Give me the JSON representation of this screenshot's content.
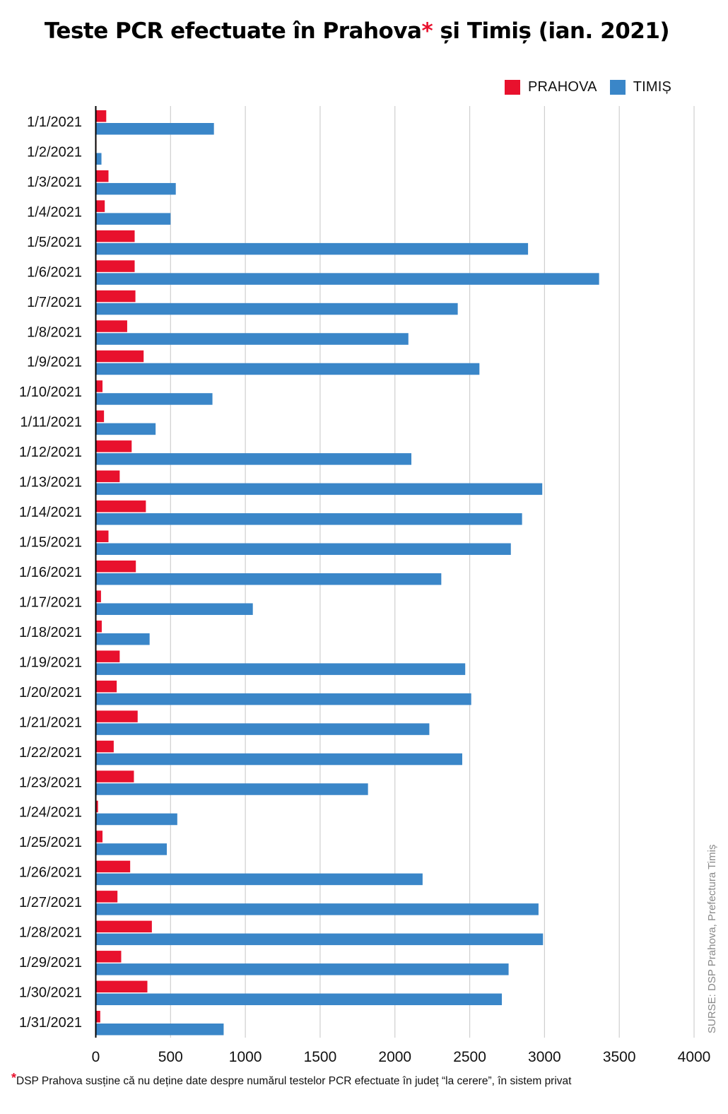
{
  "chart_data": {
    "type": "bar",
    "orientation": "horizontal",
    "title": "Teste PCR efectuate în Prahova",
    "title_star": "*",
    "title_rest": " și Timiș (ian. 2021)",
    "xlabel": "",
    "ylabel": "",
    "xlim": [
      0,
      4000
    ],
    "xticks": [
      0,
      500,
      1000,
      1500,
      2000,
      2500,
      3000,
      3500,
      4000
    ],
    "grid": true,
    "legend_position": "top-right",
    "categories": [
      "1/1/2021",
      "1/2/2021",
      "1/3/2021",
      "1/4/2021",
      "1/5/2021",
      "1/6/2021",
      "1/7/2021",
      "1/8/2021",
      "1/9/2021",
      "1/10/2021",
      "1/11/2021",
      "1/12/2021",
      "1/13/2021",
      "1/14/2021",
      "1/15/2021",
      "1/16/2021",
      "1/17/2021",
      "1/18/2021",
      "1/19/2021",
      "1/20/2021",
      "1/21/2021",
      "1/22/2021",
      "1/23/2021",
      "1/24/2021",
      "1/25/2021",
      "1/26/2021",
      "1/27/2021",
      "1/28/2021",
      "1/29/2021",
      "1/30/2021",
      "1/31/2021"
    ],
    "series": [
      {
        "name": "PRAHOVA",
        "color": "#e8112d",
        "values": [
          70,
          5,
          85,
          60,
          260,
          260,
          265,
          210,
          320,
          45,
          55,
          240,
          160,
          335,
          85,
          268,
          35,
          40,
          160,
          140,
          280,
          120,
          255,
          15,
          45,
          230,
          145,
          375,
          170,
          345,
          30
        ]
      },
      {
        "name": "TIMIȘ",
        "color": "#3a86c8",
        "values": [
          790,
          38,
          535,
          500,
          2890,
          3365,
          2420,
          2090,
          2565,
          780,
          400,
          2110,
          2985,
          2850,
          2775,
          2310,
          1050,
          360,
          2470,
          2510,
          2230,
          2450,
          1820,
          545,
          475,
          2185,
          2960,
          2990,
          2760,
          2715,
          855
        ]
      }
    ]
  },
  "footnote": {
    "star": "*",
    "text": "DSP Prahova susține că nu deține date despre numărul testelor PCR efectuate în județ “la cerere”, în sistem privat"
  },
  "source": "SURSE: DSP Prahova, Prefectura Timiș"
}
